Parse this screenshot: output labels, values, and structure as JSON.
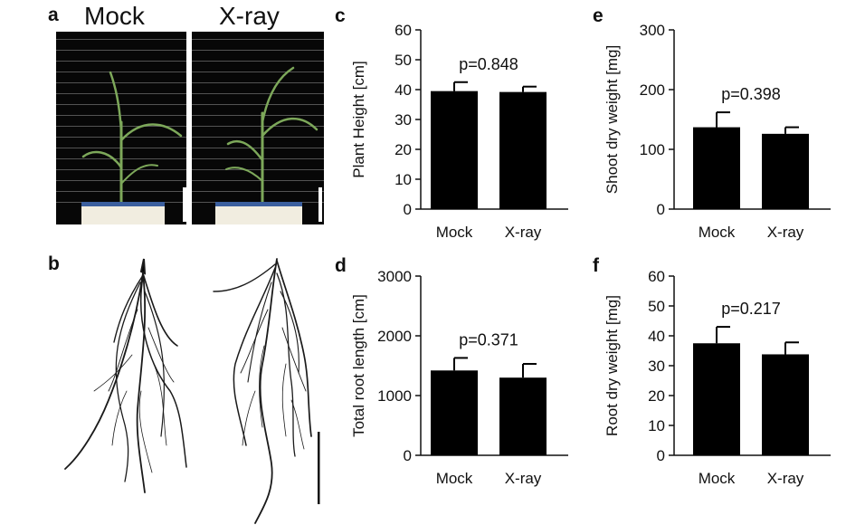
{
  "panels": {
    "a": {
      "letter": "a",
      "labels": [
        "Mock",
        "X-ray"
      ]
    },
    "b": {
      "letter": "b"
    }
  },
  "chart_data": [
    {
      "id": "c",
      "letter": "c",
      "type": "bar",
      "categories": [
        "Mock",
        "X-ray"
      ],
      "values": [
        39.5,
        39.2
      ],
      "errors": [
        3.0,
        1.8
      ],
      "ylabel": "Plant Height [cm]",
      "ylim": [
        0,
        60
      ],
      "yticks": [
        0,
        10,
        20,
        30,
        40,
        50,
        60
      ],
      "annotation": "p=0.848",
      "bar_color": "#000000",
      "grid": false
    },
    {
      "id": "e",
      "letter": "e",
      "type": "bar",
      "categories": [
        "Mock",
        "X-ray"
      ],
      "values": [
        137,
        126
      ],
      "errors": [
        25,
        11
      ],
      "ylabel": "Shoot dry weight [mg]",
      "ylim": [
        0,
        300
      ],
      "yticks": [
        0,
        100,
        200,
        300
      ],
      "annotation": "p=0.398",
      "bar_color": "#000000",
      "grid": false
    },
    {
      "id": "d",
      "letter": "d",
      "type": "bar",
      "categories": [
        "Mock",
        "X-ray"
      ],
      "values": [
        1420,
        1300
      ],
      "errors": [
        210,
        230
      ],
      "ylabel": "Total root length [cm]",
      "ylim": [
        0,
        3000
      ],
      "yticks": [
        0,
        1000,
        2000,
        3000
      ],
      "annotation": "p=0.371",
      "bar_color": "#000000",
      "grid": false
    },
    {
      "id": "f",
      "letter": "f",
      "type": "bar",
      "categories": [
        "Mock",
        "X-ray"
      ],
      "values": [
        37.5,
        33.8
      ],
      "errors": [
        5.5,
        4.0
      ],
      "ylabel": "Root dry weight [mg]",
      "ylim": [
        0,
        60
      ],
      "yticks": [
        0,
        10,
        20,
        30,
        40,
        50,
        60
      ],
      "annotation": "p=0.217",
      "bar_color": "#000000",
      "grid": false
    }
  ]
}
